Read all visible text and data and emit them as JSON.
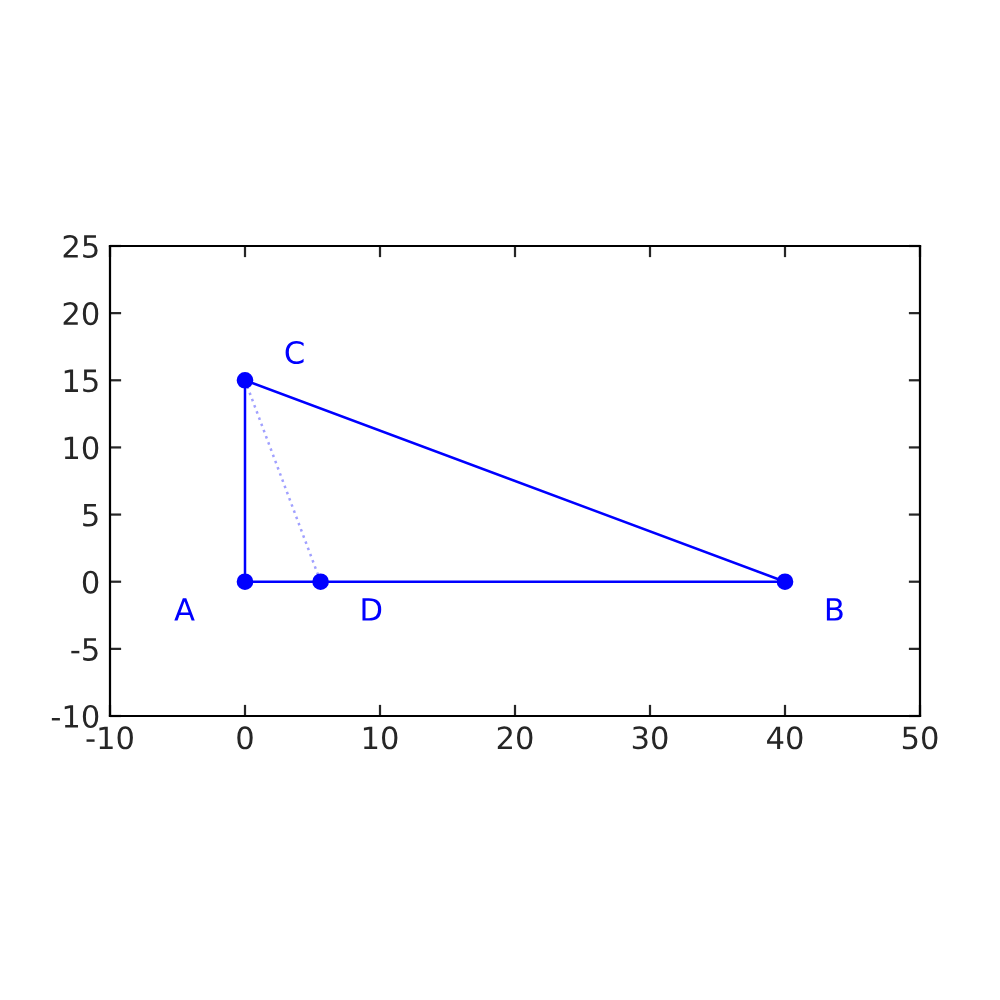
{
  "chart_data": {
    "type": "line",
    "series": [
      {
        "color": "#0000ff",
        "x": [
          0,
          40
        ],
        "values": [
          0,
          0
        ],
        "marker": "none",
        "line_style": "solid"
      },
      {
        "color": "#0000ff",
        "x": [
          0,
          40
        ],
        "values": [
          15,
          0
        ],
        "marker": "none",
        "line_style": "solid"
      },
      {
        "color": "#0000ff",
        "x": [
          0,
          0
        ],
        "values": [
          0,
          15
        ],
        "marker": "none",
        "line_style": "solid"
      },
      {
        "color": "#a0a0ff",
        "x": [
          0,
          5.6
        ],
        "values": [
          15,
          0
        ],
        "marker": "none",
        "line_style": "dotted"
      },
      {
        "type": "scatter",
        "color": "#0000ff",
        "x": [
          0,
          40,
          0,
          5.6
        ],
        "values": [
          0,
          0,
          15,
          0
        ],
        "marker": "circle"
      }
    ],
    "annotations": [
      {
        "text": "A",
        "x": 0,
        "y": 0
      },
      {
        "text": "B",
        "x": 40,
        "y": 0
      },
      {
        "text": "C",
        "x": 0,
        "y": 15
      },
      {
        "text": "D",
        "x": 5.6,
        "y": 0
      }
    ],
    "xlim": [
      -10,
      50
    ],
    "xticks": [
      -10,
      0,
      10,
      20,
      30,
      40,
      50
    ],
    "ylim": [
      -10,
      25
    ],
    "yticks": [
      -10,
      -5,
      0,
      5,
      10,
      15,
      20,
      25
    ],
    "grid": false,
    "legend": false
  }
}
